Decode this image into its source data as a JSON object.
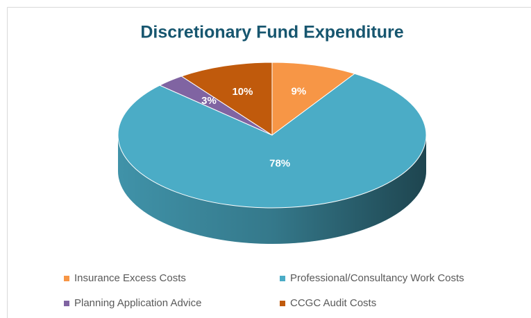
{
  "chart_data": {
    "type": "pie3d",
    "title": "Discretionary Fund Expenditure",
    "categories": [
      "Insurance Excess Costs",
      "Professional/Consultancy Work Costs",
      "Planning Application Advice",
      "CCGC Audit Costs"
    ],
    "values": [
      9,
      78,
      3,
      10
    ],
    "value_labels": [
      "9%",
      "78%",
      "3%",
      "10%"
    ],
    "colors": [
      "#f79646",
      "#4bacc6",
      "#8064a2",
      "#c05a0c"
    ]
  }
}
